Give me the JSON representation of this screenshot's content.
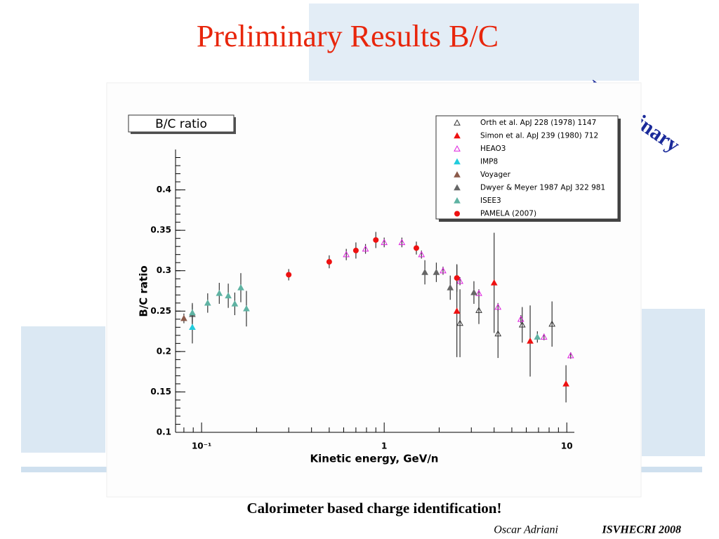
{
  "slide": {
    "title": "Preliminary Results B/C",
    "stamp": "Preliminary",
    "caption": "Calorimeter based charge identification!",
    "author": "Oscar Adriani",
    "event": "ISVHECRI 2008"
  },
  "chart_data": {
    "type": "scatter",
    "title": "B/C ratio",
    "x_label": "Kinetic energy,  GeV/n",
    "y_label": "B/C ratio",
    "xscale": "log",
    "xlim": [
      0.072,
      11
    ],
    "ylim": [
      0.1,
      0.45
    ],
    "xticks": [
      {
        "value": 0.1,
        "label": "10⁻¹"
      },
      1,
      10
    ],
    "yticks": [
      0.1,
      0.15,
      0.2,
      0.25,
      0.3,
      0.35,
      0.4
    ],
    "legend": "upper right",
    "series": [
      {
        "name": "Orth et al. ApJ 228 (1978) 1147",
        "color": "#333333",
        "marker": "open-triangle",
        "x": [
          2.6,
          3.3,
          4.2,
          5.7,
          8.3
        ],
        "values": [
          0.235,
          0.251,
          0.222,
          0.233,
          0.234
        ],
        "errors": [
          0.042,
          0.017,
          0.03,
          0.022,
          0.028
        ]
      },
      {
        "name": "Simon et al. ApJ 239 (1980) 712",
        "color": "#ee1111",
        "marker": "triangle",
        "x": [
          2.5,
          4.0,
          6.3,
          9.9
        ],
        "values": [
          0.25,
          0.285,
          0.213,
          0.16
        ],
        "errors": [
          0.057,
          0.062,
          0.044,
          0.023
        ]
      },
      {
        "name": "HEAO3",
        "color": "#dd22dd",
        "marker": "open-triangle",
        "x": [
          0.62,
          0.79,
          1.0,
          1.25,
          1.6,
          2.1,
          2.6,
          3.3,
          4.2,
          5.6,
          7.5,
          10.5
        ],
        "values": [
          0.32,
          0.327,
          0.335,
          0.335,
          0.32,
          0.3,
          0.287,
          0.272,
          0.255,
          0.24,
          0.218,
          0.195
        ],
        "errors": [
          0.007,
          0.006,
          0.006,
          0.006,
          0.005,
          0.005,
          0.005,
          0.005,
          0.005,
          0.005,
          0.004,
          0.004
        ]
      },
      {
        "name": "IMP8",
        "color": "#22ccdd",
        "marker": "triangle",
        "x": [
          0.089
        ],
        "values": [
          0.23
        ],
        "errors": [
          0.02
        ]
      },
      {
        "name": "Voyager",
        "color": "#8b5a4a",
        "marker": "triangle",
        "x": [
          0.08
        ],
        "values": [
          0.241
        ],
        "errors": [
          0.006
        ]
      },
      {
        "name": "Dwyer & Meyer 1987 ApJ 322 981",
        "color": "#666666",
        "marker": "triangle",
        "x": [
          0.089,
          1.67,
          1.93,
          2.3,
          3.1
        ],
        "values": [
          0.246,
          0.298,
          0.298,
          0.279,
          0.273
        ],
        "errors": [
          0.012,
          0.015,
          0.012,
          0.015,
          0.014
        ]
      },
      {
        "name": "ISEE3",
        "color": "#5fb3a3",
        "marker": "triangle",
        "x": [
          0.089,
          0.108,
          0.125,
          0.14,
          0.152,
          0.164,
          0.176,
          6.9
        ],
        "values": [
          0.248,
          0.26,
          0.272,
          0.269,
          0.259,
          0.279,
          0.253,
          0.218
        ],
        "errors": [
          0.012,
          0.012,
          0.013,
          0.015,
          0.014,
          0.018,
          0.022,
          0.007
        ]
      },
      {
        "name": "PAMELA (2007)",
        "color": "#ee1111",
        "marker": "circle",
        "x": [
          0.3,
          0.5,
          0.7,
          0.9,
          1.5,
          2.5
        ],
        "values": [
          0.295,
          0.311,
          0.325,
          0.338,
          0.328,
          0.291
        ],
        "errors": [
          0.007,
          0.008,
          0.01,
          0.01,
          0.008,
          0.017
        ]
      }
    ]
  }
}
